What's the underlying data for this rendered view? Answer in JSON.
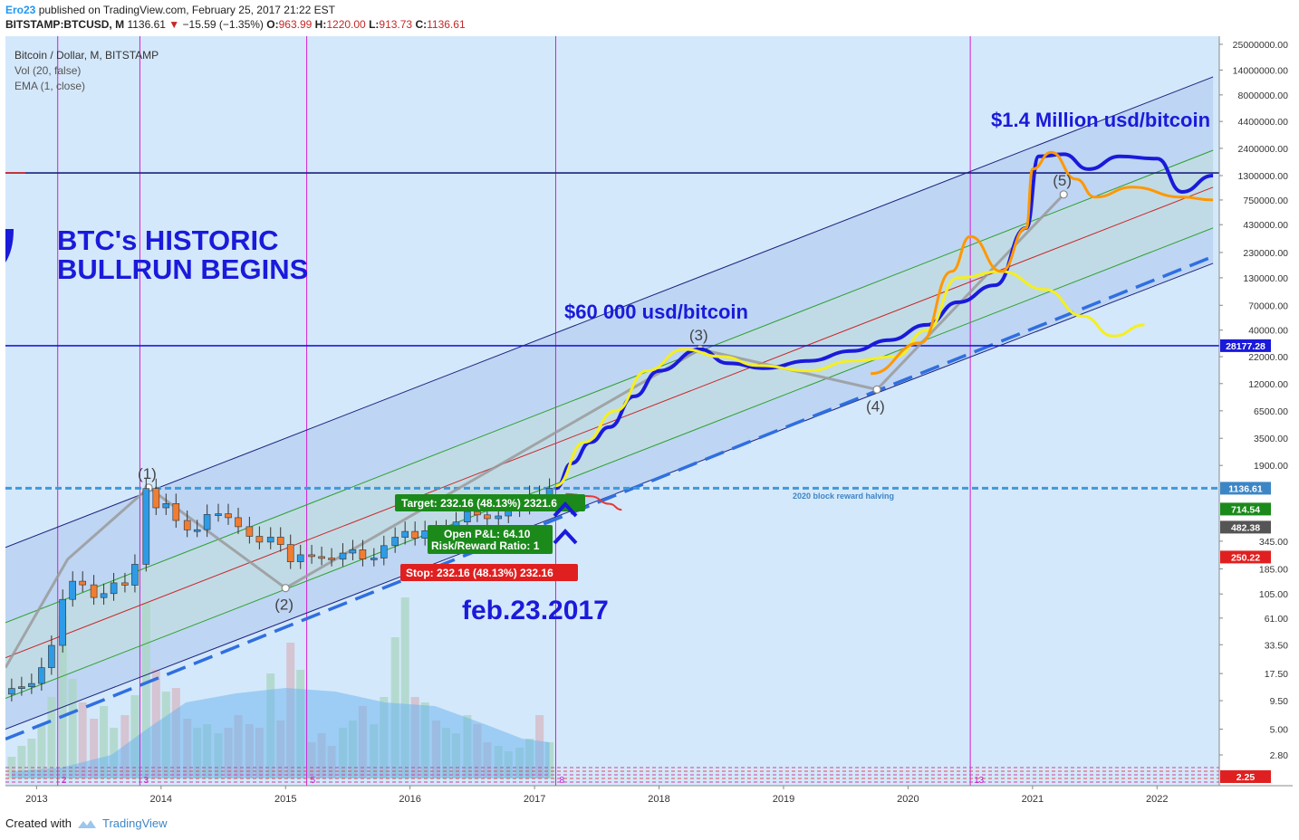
{
  "header": {
    "author": "Ero23",
    "published": " published on TradingView.com, February 25, 2017 21:22 EST",
    "symbol": "BITSTAMP:BTCUSD, M",
    "last": "1136.61",
    "change": "−15.59 (−1.35%)",
    "o_label": "O:",
    "o_val": "963.99",
    "h_label": "H:",
    "h_val": "1220.00",
    "l_label": "L:",
    "l_val": "913.73",
    "c_label": "C:",
    "c_val": "1136.61"
  },
  "legend": {
    "line1": "Bitcoin / Dollar, M, BITSTAMP",
    "line2": "Vol (20, false)",
    "line3": "EMA (1, close)"
  },
  "annotations": {
    "historic_line1": "BTC's HISTORIC",
    "historic_line2": "BULLRUN BEGINS",
    "million": "$1.4 Million usd/bitcoin",
    "sixty": "$60 000 usd/bitcoin",
    "feb": "feb.23.2017",
    "halving": "2020 block reward halving",
    "target": "Target: 232.16 (48.13%) 2321.6",
    "open_pl": "Open P&L: 64.10",
    "rr": "Risk/Reward Ratio: 1",
    "stop": "Stop: 232.16 (48.13%) 232.16",
    "wave1": "(1)",
    "wave2": "(2)",
    "wave3": "(3)",
    "wave4": "(4)",
    "wave5": "(5)",
    "cycle_labels": [
      "2",
      "3",
      "5",
      "8",
      "13"
    ]
  },
  "price_tags": [
    {
      "label": "28177.28",
      "value": 28177.28,
      "color": "#1a1adb"
    },
    {
      "label": "1136.61",
      "value": 1136.61,
      "color": "#3d86c6"
    },
    {
      "label": "714.54",
      "value": 714.54,
      "color": "#1b8a1b"
    },
    {
      "label": "482.38",
      "value": 482.38,
      "color": "#555555"
    },
    {
      "label": "250.22",
      "value": 250.22,
      "color": "#e02020"
    },
    {
      "label": "2.25",
      "value": 2.25,
      "color": "#e02020"
    }
  ],
  "chart_data": {
    "type": "line",
    "scale": "log",
    "xlim": [
      2012.75,
      2022.5
    ],
    "ylim": [
      1.4,
      30000000
    ],
    "y_ticks": [
      {
        "label": "25000000.00",
        "value": 25000000
      },
      {
        "label": "14000000.00",
        "value": 14000000
      },
      {
        "label": "8000000.00",
        "value": 8000000
      },
      {
        "label": "4400000.00",
        "value": 4400000
      },
      {
        "label": "2400000.00",
        "value": 2400000
      },
      {
        "label": "1300000.00",
        "value": 1300000
      },
      {
        "label": "750000.00",
        "value": 750000
      },
      {
        "label": "430000.00",
        "value": 430000
      },
      {
        "label": "230000.00",
        "value": 230000
      },
      {
        "label": "130000.00",
        "value": 130000
      },
      {
        "label": "70000.00",
        "value": 70000
      },
      {
        "label": "40000.00",
        "value": 40000
      },
      {
        "label": "22000.00",
        "value": 22000
      },
      {
        "label": "12000.00",
        "value": 12000
      },
      {
        "label": "6500.00",
        "value": 6500
      },
      {
        "label": "3500.00",
        "value": 3500
      },
      {
        "label": "1900.00",
        "value": 1900
      },
      {
        "label": "345.00",
        "value": 345
      },
      {
        "label": "185.00",
        "value": 185
      },
      {
        "label": "105.00",
        "value": 105
      },
      {
        "label": "61.00",
        "value": 61
      },
      {
        "label": "33.50",
        "value": 33.5
      },
      {
        "label": "17.50",
        "value": 17.5
      },
      {
        "label": "9.50",
        "value": 9.5
      },
      {
        "label": "5.00",
        "value": 5
      },
      {
        "label": "2.80",
        "value": 2.8
      }
    ],
    "x_ticks": [
      {
        "label": "2013",
        "value": 2013
      },
      {
        "label": "2014",
        "value": 2014
      },
      {
        "label": "2015",
        "value": 2015
      },
      {
        "label": "2016",
        "value": 2016
      },
      {
        "label": "2017",
        "value": 2017
      },
      {
        "label": "2018",
        "value": 2018
      },
      {
        "label": "2019",
        "value": 2019
      },
      {
        "label": "2020",
        "value": 2020
      },
      {
        "label": "2021",
        "value": 2021
      },
      {
        "label": "2022",
        "value": 2022
      }
    ],
    "vertical_cycle_lines": [
      2013.17,
      2013.83,
      2015.17,
      2017.17,
      2020.5
    ],
    "horizontal_lines": [
      {
        "value": 28177.28,
        "color": "#1a1adb",
        "style": "solid"
      },
      {
        "value": 1380000,
        "color": "#1a237e",
        "style": "solid"
      },
      {
        "value": 1136.61,
        "color": "#3d9ad8",
        "style": "dashed"
      }
    ],
    "channel": {
      "upper": [
        [
          2012.75,
          300
        ],
        [
          2022.45,
          12000000
        ]
      ],
      "upper_green": [
        [
          2012.75,
          55
        ],
        [
          2022.45,
          2300000
        ]
      ],
      "mid_red": [
        [
          2012.75,
          25
        ],
        [
          2022.45,
          1000000
        ]
      ],
      "lower_green": [
        [
          2012.75,
          10
        ],
        [
          2022.45,
          400000
        ]
      ],
      "lower": [
        [
          2012.75,
          5
        ],
        [
          2022.45,
          180000
        ]
      ],
      "dashed_support": [
        [
          2012.75,
          4
        ],
        [
          2022.45,
          210000
        ]
      ]
    },
    "elliott_waves": [
      {
        "label": "(1)",
        "x": 2013.9,
        "y": 1150
      },
      {
        "label": "(2)",
        "x": 2015.0,
        "y": 120
      },
      {
        "label": "(3)",
        "x": 2018.33,
        "y": 26000
      },
      {
        "label": "(4)",
        "x": 2019.75,
        "y": 10500
      },
      {
        "label": "(5)",
        "x": 2021.25,
        "y": 850000
      }
    ],
    "candles": [
      {
        "t": 2012.8,
        "o": 11,
        "c": 12.5
      },
      {
        "t": 2012.88,
        "o": 12.5,
        "c": 13
      },
      {
        "t": 2012.96,
        "o": 13,
        "c": 14
      },
      {
        "t": 2013.04,
        "o": 14,
        "c": 20
      },
      {
        "t": 2013.12,
        "o": 20,
        "c": 33
      },
      {
        "t": 2013.21,
        "o": 33,
        "c": 93
      },
      {
        "t": 2013.29,
        "o": 93,
        "c": 140
      },
      {
        "t": 2013.37,
        "o": 140,
        "c": 129
      },
      {
        "t": 2013.46,
        "o": 129,
        "c": 97
      },
      {
        "t": 2013.54,
        "o": 97,
        "c": 106
      },
      {
        "t": 2013.62,
        "o": 106,
        "c": 135
      },
      {
        "t": 2013.71,
        "o": 135,
        "c": 128
      },
      {
        "t": 2013.79,
        "o": 128,
        "c": 205
      },
      {
        "t": 2013.88,
        "o": 205,
        "c": 1130
      },
      {
        "t": 2013.96,
        "o": 1130,
        "c": 732
      },
      {
        "t": 2014.04,
        "o": 732,
        "c": 805
      },
      {
        "t": 2014.12,
        "o": 805,
        "c": 550
      },
      {
        "t": 2014.21,
        "o": 550,
        "c": 445
      },
      {
        "t": 2014.29,
        "o": 445,
        "c": 447
      },
      {
        "t": 2014.37,
        "o": 447,
        "c": 630
      },
      {
        "t": 2014.46,
        "o": 630,
        "c": 640
      },
      {
        "t": 2014.54,
        "o": 640,
        "c": 586
      },
      {
        "t": 2014.62,
        "o": 586,
        "c": 478
      },
      {
        "t": 2014.71,
        "o": 478,
        "c": 385
      },
      {
        "t": 2014.79,
        "o": 385,
        "c": 338
      },
      {
        "t": 2014.88,
        "o": 338,
        "c": 378
      },
      {
        "t": 2014.96,
        "o": 378,
        "c": 320
      },
      {
        "t": 2015.04,
        "o": 320,
        "c": 217
      },
      {
        "t": 2015.12,
        "o": 217,
        "c": 254
      },
      {
        "t": 2015.21,
        "o": 254,
        "c": 244
      },
      {
        "t": 2015.29,
        "o": 244,
        "c": 236
      },
      {
        "t": 2015.37,
        "o": 236,
        "c": 230
      },
      {
        "t": 2015.46,
        "o": 230,
        "c": 264
      },
      {
        "t": 2015.54,
        "o": 264,
        "c": 284
      },
      {
        "t": 2015.62,
        "o": 284,
        "c": 230
      },
      {
        "t": 2015.71,
        "o": 230,
        "c": 236
      },
      {
        "t": 2015.79,
        "o": 236,
        "c": 312
      },
      {
        "t": 2015.88,
        "o": 312,
        "c": 377
      },
      {
        "t": 2015.96,
        "o": 377,
        "c": 430
      },
      {
        "t": 2016.04,
        "o": 430,
        "c": 368
      },
      {
        "t": 2016.12,
        "o": 368,
        "c": 437
      },
      {
        "t": 2016.21,
        "o": 437,
        "c": 416
      },
      {
        "t": 2016.29,
        "o": 416,
        "c": 448
      },
      {
        "t": 2016.37,
        "o": 448,
        "c": 531
      },
      {
        "t": 2016.46,
        "o": 531,
        "c": 673
      },
      {
        "t": 2016.54,
        "o": 673,
        "c": 624
      },
      {
        "t": 2016.62,
        "o": 624,
        "c": 573
      },
      {
        "t": 2016.71,
        "o": 573,
        "c": 609
      },
      {
        "t": 2016.79,
        "o": 609,
        "c": 700
      },
      {
        "t": 2016.88,
        "o": 700,
        "c": 742
      },
      {
        "t": 2016.96,
        "o": 742,
        "c": 966
      },
      {
        "t": 2017.04,
        "o": 966,
        "c": 964
      },
      {
        "t": 2017.12,
        "o": 964,
        "c": 1136
      }
    ],
    "series": [
      {
        "name": "",
        "color": "#1a1adb",
        "points": [
          [
            2017.17,
            1136
          ],
          [
            2017.3,
            2000
          ],
          [
            2017.45,
            3200
          ],
          [
            2017.6,
            4500
          ],
          [
            2017.8,
            9000
          ],
          [
            2018.0,
            16000
          ],
          [
            2018.33,
            26000
          ],
          [
            2018.55,
            19000
          ],
          [
            2018.85,
            17000
          ],
          [
            2019.2,
            20000
          ],
          [
            2019.55,
            25000
          ],
          [
            2019.85,
            32000
          ],
          [
            2020.15,
            45000
          ],
          [
            2020.4,
            75000
          ],
          [
            2020.7,
            110000
          ],
          [
            2020.95,
            400000
          ],
          [
            2021.05,
            2000000
          ],
          [
            2021.25,
            2100000
          ],
          [
            2021.45,
            1500000
          ],
          [
            2021.7,
            2000000
          ],
          [
            2022.0,
            1900000
          ],
          [
            2022.2,
            900000
          ],
          [
            2022.45,
            1300000
          ]
        ]
      },
      {
        "name": "",
        "color": "#f5ef1f",
        "points": [
          [
            2017.17,
            1200
          ],
          [
            2017.4,
            3200
          ],
          [
            2017.65,
            6500
          ],
          [
            2017.9,
            16000
          ],
          [
            2018.2,
            26000
          ],
          [
            2018.5,
            22000
          ],
          [
            2018.8,
            18000
          ],
          [
            2019.2,
            16000
          ],
          [
            2019.55,
            20000
          ],
          [
            2019.9,
            22000
          ],
          [
            2020.15,
            40000
          ],
          [
            2020.4,
            130000
          ],
          [
            2020.75,
            150000
          ],
          [
            2021.1,
            100000
          ],
          [
            2021.4,
            55000
          ],
          [
            2021.65,
            35000
          ],
          [
            2021.9,
            45000
          ]
        ]
      },
      {
        "name": "",
        "color": "#ff9800",
        "points": [
          [
            2019.7,
            15000
          ],
          [
            2020.1,
            30000
          ],
          [
            2020.35,
            150000
          ],
          [
            2020.5,
            330000
          ],
          [
            2020.75,
            150000
          ],
          [
            2020.95,
            400000
          ],
          [
            2021.0,
            1500000
          ],
          [
            2021.15,
            2200000
          ],
          [
            2021.35,
            1200000
          ],
          [
            2021.5,
            800000
          ],
          [
            2021.8,
            1000000
          ],
          [
            2022.2,
            800000
          ],
          [
            2022.45,
            750000
          ]
        ]
      },
      {
        "name": "",
        "color": "#e53935",
        "points": [
          [
            2017.25,
            1000
          ],
          [
            2017.45,
            950
          ],
          [
            2017.6,
            800
          ],
          [
            2017.7,
            700
          ]
        ]
      }
    ]
  }
}
